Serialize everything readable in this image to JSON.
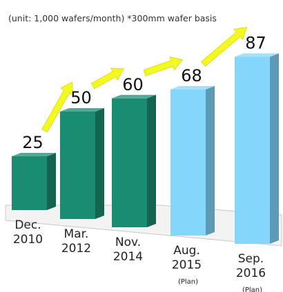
{
  "chart_data": {
    "type": "bar",
    "subtitle": "(unit: 1,000 wafers/month) *300mm wafer basis",
    "categories": [
      [
        "Dec.",
        "2010"
      ],
      [
        "Mar.",
        "2012"
      ],
      [
        "Nov.",
        "2014"
      ],
      [
        "Aug.",
        "2015"
      ],
      [
        "Sep.",
        "2016"
      ]
    ],
    "notes": [
      "",
      "",
      "",
      "(Plan)",
      "(Plan)"
    ],
    "values": [
      25,
      50,
      60,
      68,
      87
    ],
    "value_labels": [
      "25",
      "50",
      "60",
      "68",
      "87"
    ],
    "colors": {
      "actual": "#1a8c72",
      "plan": "#84d6fa",
      "arrow": "#f4f821",
      "floor": "#c8c8c8"
    },
    "arrows": [
      [
        0,
        1
      ],
      [
        1,
        2
      ],
      [
        2,
        3
      ],
      [
        3,
        4
      ]
    ],
    "grid": false,
    "legend": "none"
  }
}
